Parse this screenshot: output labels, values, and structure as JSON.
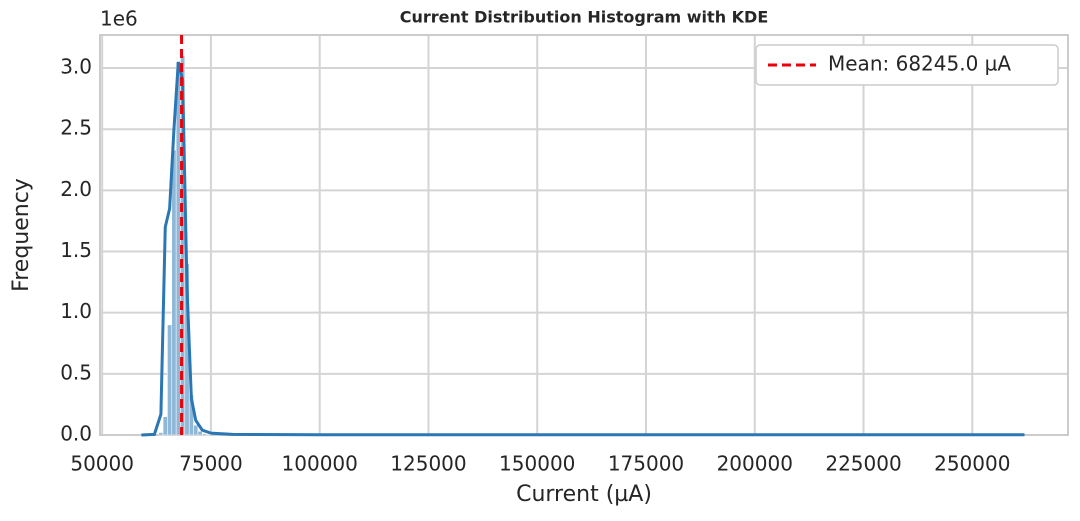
{
  "chart_data": {
    "type": "histogram",
    "title": "Current Distribution Histogram with KDE",
    "x_label": "Current (µA)",
    "y_label": "Frequency",
    "y_offset_label": "1e6",
    "bins": [
      63000,
      64000,
      65000,
      66000,
      67000,
      68000,
      69000,
      70000,
      71000,
      72000,
      73000,
      74000,
      75000
    ],
    "counts": [
      20000,
      150000,
      900000,
      2330000,
      3050000,
      3100000,
      1400000,
      330000,
      80000,
      30000,
      10000,
      5000
    ],
    "color": "#8fb8d8",
    "kde": {
      "color": "#2a77b4",
      "x": [
        59000,
        62000,
        63500,
        64500,
        65500,
        66500,
        67500,
        68500,
        69500,
        70500,
        71500,
        73000,
        75000,
        80000,
        100000,
        262000
      ],
      "values": [
        0,
        5000,
        170000,
        1700000,
        1850000,
        2500000,
        3050000,
        2900000,
        1200000,
        300000,
        120000,
        40000,
        15000,
        5000,
        2000,
        2000
      ]
    },
    "lines": [
      {
        "name": "Mean: 68245.0 µA",
        "x": 68245,
        "color": "#e8000b"
      }
    ],
    "xlim": [
      49500,
      272000
    ],
    "ylim": [
      0,
      3270000
    ],
    "xticks": [
      50000,
      75000,
      100000,
      125000,
      150000,
      175000,
      200000,
      225000,
      250000
    ],
    "yticks": [
      {
        "value": 0,
        "label": "0.0"
      },
      {
        "value": 500000,
        "label": "0.5"
      },
      {
        "value": 1000000,
        "label": "1.0"
      },
      {
        "value": 1500000,
        "label": "1.5"
      },
      {
        "value": 2000000,
        "label": "2.0"
      },
      {
        "value": 2500000,
        "label": "2.5"
      },
      {
        "value": 3000000,
        "label": "3.0"
      }
    ],
    "grid": true,
    "legend": "upper right"
  }
}
